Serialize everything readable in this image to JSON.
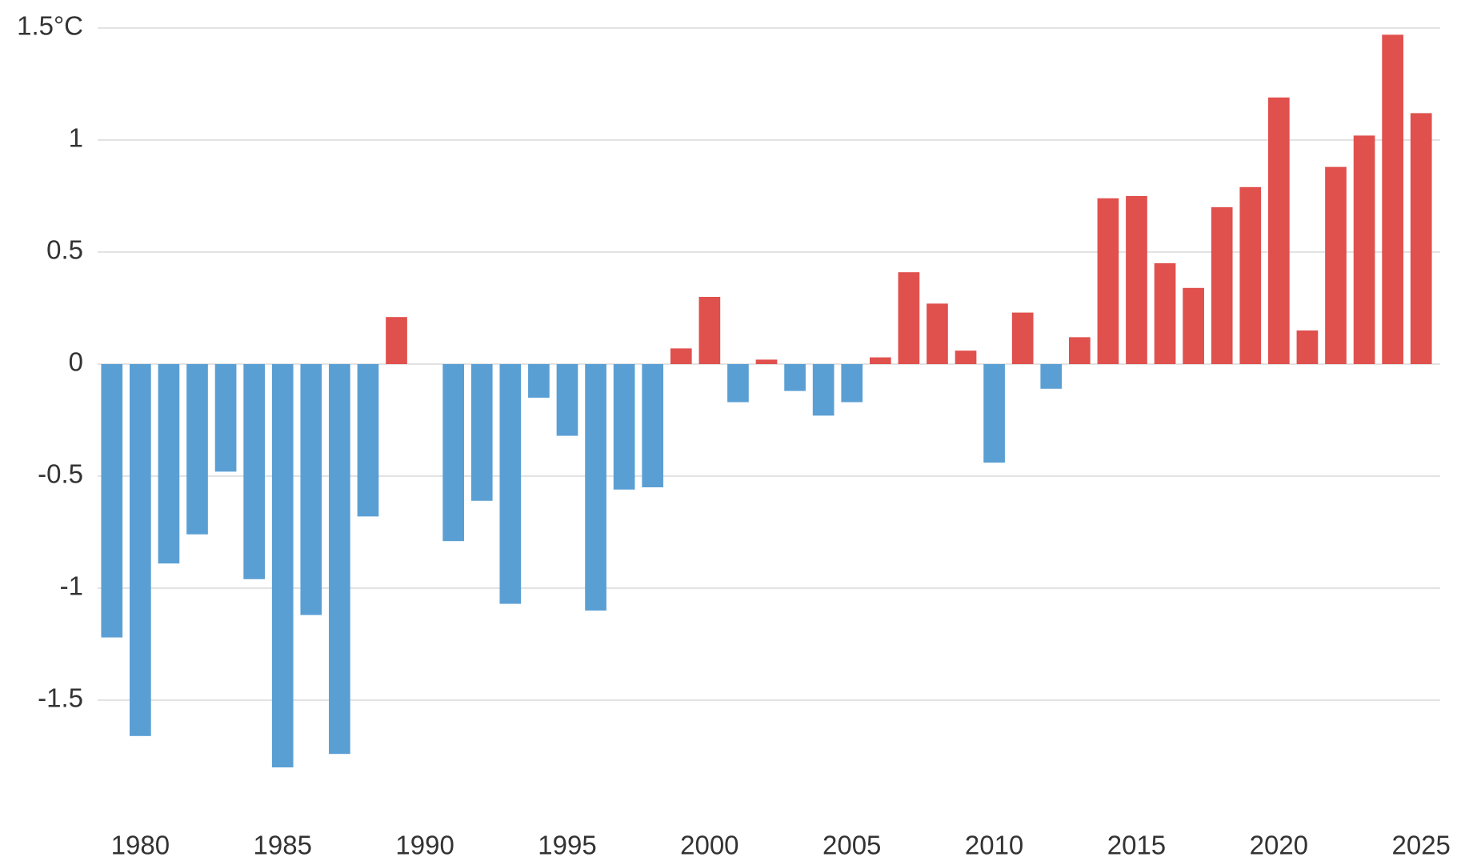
{
  "chart_data": {
    "type": "bar",
    "x": [
      1979,
      1980,
      1981,
      1982,
      1983,
      1984,
      1985,
      1986,
      1987,
      1988,
      1989,
      1990,
      1991,
      1992,
      1993,
      1994,
      1995,
      1996,
      1997,
      1998,
      1999,
      2000,
      2001,
      2002,
      2003,
      2004,
      2005,
      2006,
      2007,
      2008,
      2009,
      2010,
      2011,
      2012,
      2013,
      2014,
      2015,
      2016,
      2017,
      2018,
      2019,
      2020,
      2021,
      2022,
      2023,
      2024,
      2025
    ],
    "values": [
      -1.22,
      -1.66,
      -0.89,
      -0.76,
      -0.48,
      -0.96,
      -1.8,
      -1.12,
      -1.74,
      -0.68,
      0.21,
      null,
      -0.79,
      -0.61,
      -1.07,
      -0.15,
      -0.32,
      -1.1,
      -0.56,
      -0.55,
      0.07,
      0.3,
      -0.17,
      0.02,
      -0.12,
      -0.23,
      -0.17,
      0.03,
      0.41,
      0.27,
      0.06,
      -0.44,
      0.23,
      -0.11,
      0.12,
      0.74,
      0.75,
      0.45,
      0.34,
      0.7,
      0.79,
      1.19,
      0.15,
      0.88,
      1.02,
      1.47,
      1.12
    ],
    "positive_color": "#e0504d",
    "negative_color": "#5a9fd4",
    "xlim": [
      1978.5,
      2025.5
    ],
    "xticks": [
      1980,
      1985,
      1990,
      1995,
      2000,
      2005,
      2010,
      2015,
      2020,
      2025
    ],
    "ylim": [
      -1.95,
      1.55
    ],
    "yticks": [
      -1.5,
      -1,
      -0.5,
      0,
      0.5,
      1,
      {
        "value": 1.5,
        "label": "1.5°C"
      }
    ],
    "grid": true
  }
}
